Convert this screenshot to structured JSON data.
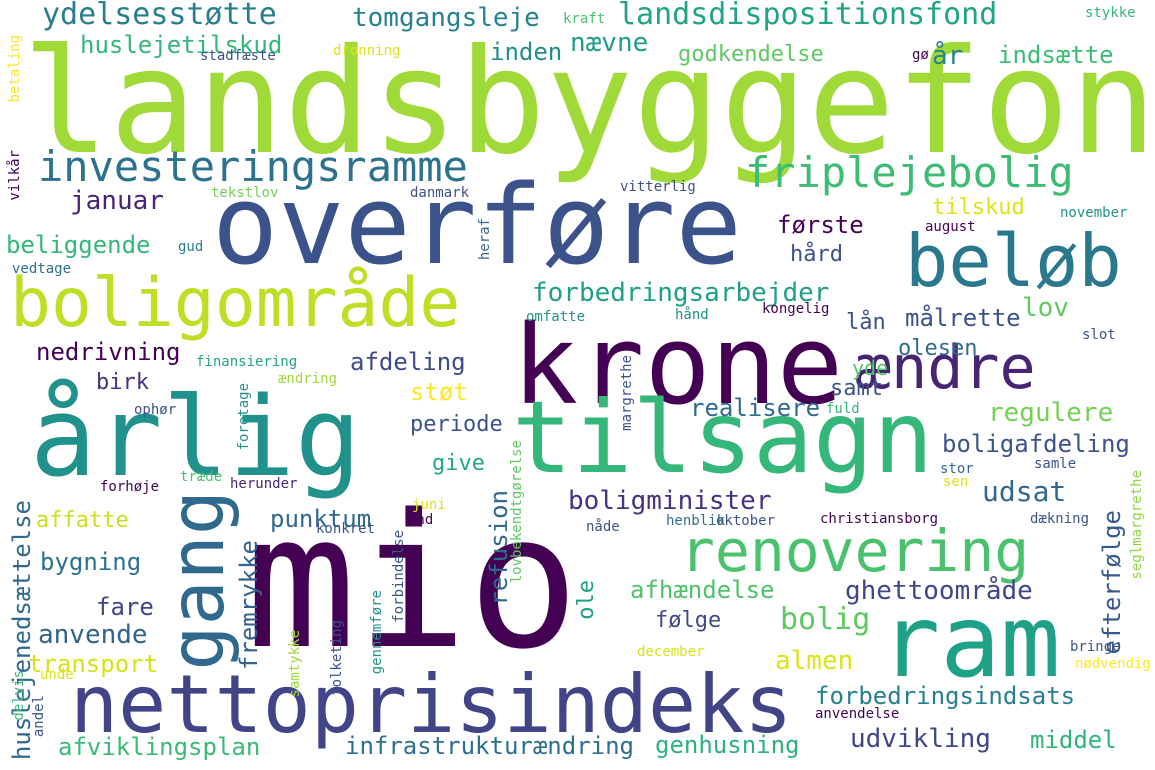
{
  "word_cloud": {
    "words": [
      {
        "text": "landsbyggefond",
        "color": "#a0da39"
      },
      {
        "text": "mio",
        "color": "#440154"
      },
      {
        "text": "overføre",
        "color": "#3b528b"
      },
      {
        "text": "krone",
        "color": "#440154"
      },
      {
        "text": "tilsagn",
        "color": "#35b779"
      },
      {
        "text": "årlig",
        "color": "#21918c"
      },
      {
        "text": "ram",
        "color": "#1fa187"
      },
      {
        "text": "nettoprisindeks",
        "color": "#414487"
      },
      {
        "text": "boligområde",
        "color": "#bddf26"
      },
      {
        "text": "beløb",
        "color": "#2a788e"
      },
      {
        "text": "gang",
        "color": "#31688e"
      },
      {
        "text": "renovering",
        "color": "#4ac16d"
      },
      {
        "text": "ændre",
        "color": "#482475"
      },
      {
        "text": "investeringsramme",
        "color": "#2c728e"
      },
      {
        "text": "friplejebolig",
        "color": "#3dbc74"
      },
      {
        "text": "ydelsesstøtte",
        "color": "#287d8e"
      },
      {
        "text": "landsdispositionsfond",
        "color": "#20a386"
      },
      {
        "text": "tomgangsleje",
        "color": "#26828e"
      },
      {
        "text": "forbedringsarbejder",
        "color": "#1f9e89"
      },
      {
        "text": "boligminister",
        "color": "#46327e"
      },
      {
        "text": "udsat",
        "color": "#31688e"
      },
      {
        "text": "bolig",
        "color": "#5ec962"
      },
      {
        "text": "infrastrukturændring",
        "color": "#2d708e"
      },
      {
        "text": "udvikling",
        "color": "#404688"
      },
      {
        "text": "middel",
        "color": "#2fb47c"
      },
      {
        "text": "genhusning",
        "color": "#2db27d"
      },
      {
        "text": "afviklingsplan",
        "color": "#3aba76"
      },
      {
        "text": "forbedringsindsats",
        "color": "#277f8e"
      },
      {
        "text": "transport",
        "color": "#d8e219"
      },
      {
        "text": "anvende",
        "color": "#33638d"
      },
      {
        "text": "afhændelse",
        "color": "#4fc16b"
      },
      {
        "text": "ghettoområde",
        "color": "#3f4788"
      },
      {
        "text": "almen",
        "color": "#dde318"
      },
      {
        "text": "følge",
        "color": "#3e4989"
      },
      {
        "text": "efterfølge",
        "color": "#38598c"
      },
      {
        "text": "regulere",
        "color": "#75d054"
      },
      {
        "text": "boligafdeling",
        "color": "#3b528b"
      },
      {
        "text": "realisere",
        "color": "#31688e"
      },
      {
        "text": "samt",
        "color": "#3b528b"
      },
      {
        "text": "lov",
        "color": "#5ec962"
      },
      {
        "text": "målrette",
        "color": "#3b528b"
      },
      {
        "text": "lån",
        "color": "#3b528b"
      },
      {
        "text": "olesen",
        "color": "#2f6c8e"
      },
      {
        "text": "yde",
        "color": "#52c569"
      },
      {
        "text": "afdeling",
        "color": "#3e4a89"
      },
      {
        "text": "nedrivning",
        "color": "#440154"
      },
      {
        "text": "birk",
        "color": "#46327e"
      },
      {
        "text": "støt",
        "color": "#fde725"
      },
      {
        "text": "periode",
        "color": "#3b528b"
      },
      {
        "text": "give",
        "color": "#22a884"
      },
      {
        "text": "punktum",
        "color": "#31688e"
      },
      {
        "text": "fremrykke",
        "color": "#33638d"
      },
      {
        "text": "refusion",
        "color": "#31688e"
      },
      {
        "text": "ole",
        "color": "#1f9e89"
      },
      {
        "text": "bygning",
        "color": "#2c728e"
      },
      {
        "text": "fare",
        "color": "#414487"
      },
      {
        "text": "affatte",
        "color": "#c8e020"
      },
      {
        "text": "huslejenedsættelse",
        "color": "#31688e"
      },
      {
        "text": "beliggende",
        "color": "#35b779"
      },
      {
        "text": "januar",
        "color": "#482475"
      },
      {
        "text": "første",
        "color": "#440154"
      },
      {
        "text": "tilskud",
        "color": "#dde318"
      },
      {
        "text": "hård",
        "color": "#3b528b"
      },
      {
        "text": "huslejetilskud",
        "color": "#35b779"
      },
      {
        "text": "nævne",
        "color": "#1f9e89"
      },
      {
        "text": "inden",
        "color": "#228c8d"
      },
      {
        "text": "godkendelse",
        "color": "#5ec962"
      },
      {
        "text": "indsætte",
        "color": "#3dbc74"
      },
      {
        "text": "år",
        "color": "#26828e"
      },
      {
        "text": "gø",
        "color": "#440154"
      },
      {
        "text": "stadfæste",
        "color": "#3b528b"
      },
      {
        "text": "dronning",
        "color": "#dde318"
      },
      {
        "text": "kraft",
        "color": "#4ac16d"
      },
      {
        "text": "stykke",
        "color": "#35b779"
      },
      {
        "text": "betaling",
        "color": "#fde725"
      },
      {
        "text": "vilkår",
        "color": "#440154"
      },
      {
        "text": "tekstlov",
        "color": "#73d056"
      },
      {
        "text": "danmark",
        "color": "#3b528b"
      },
      {
        "text": "vitterlig",
        "color": "#3b528b"
      },
      {
        "text": "november",
        "color": "#21918c"
      },
      {
        "text": "august",
        "color": "#440154"
      },
      {
        "text": "gud",
        "color": "#26828e"
      },
      {
        "text": "vedtage",
        "color": "#2d708e"
      },
      {
        "text": "heraf",
        "color": "#31688e"
      },
      {
        "text": "omfatte",
        "color": "#21918c"
      },
      {
        "text": "hånd",
        "color": "#21918c"
      },
      {
        "text": "kongelig",
        "color": "#440154"
      },
      {
        "text": "slot",
        "color": "#3b528b"
      },
      {
        "text": "finansiering",
        "color": "#20a486"
      },
      {
        "text": "ændring",
        "color": "#a0da39"
      },
      {
        "text": "foretage",
        "color": "#21918c"
      },
      {
        "text": "ophør",
        "color": "#3b528b"
      },
      {
        "text": "margrethe",
        "color": "#3b528b"
      },
      {
        "text": "fuld",
        "color": "#35b779"
      },
      {
        "text": "træde",
        "color": "#4ac16d"
      },
      {
        "text": "forhøje",
        "color": "#440154"
      },
      {
        "text": "herunder",
        "color": "#482475"
      },
      {
        "text": "lovbekendtgørelse",
        "color": "#5ec962"
      },
      {
        "text": "stor",
        "color": "#31688e"
      },
      {
        "text": "samle",
        "color": "#3b528b"
      },
      {
        "text": "sen",
        "color": "#dde318"
      },
      {
        "text": "seglmargrethe",
        "color": "#90d743"
      },
      {
        "text": "juni",
        "color": "#dde318"
      },
      {
        "text": "and",
        "color": "#440154"
      },
      {
        "text": "henblik",
        "color": "#2d708e"
      },
      {
        "text": "oktober",
        "color": "#3b528b"
      },
      {
        "text": "christiansborg",
        "color": "#440154"
      },
      {
        "text": "dækning",
        "color": "#3b528b"
      },
      {
        "text": "konkret",
        "color": "#3b528b"
      },
      {
        "text": "nåde",
        "color": "#3b528b"
      },
      {
        "text": "forbindelse",
        "color": "#3b528b"
      },
      {
        "text": "gennemføre",
        "color": "#21918c"
      },
      {
        "text": "folketing",
        "color": "#3b528b"
      },
      {
        "text": "samtykke",
        "color": "#a0da39"
      },
      {
        "text": "unde",
        "color": "#dde318"
      },
      {
        "text": "delvis",
        "color": "#35b779"
      },
      {
        "text": "andel",
        "color": "#3b528b"
      },
      {
        "text": "bringe",
        "color": "#3b528b"
      },
      {
        "text": "nødvendig",
        "color": "#fde725"
      },
      {
        "text": "december",
        "color": "#dde318"
      },
      {
        "text": "anvendelse",
        "color": "#440154"
      }
    ]
  }
}
